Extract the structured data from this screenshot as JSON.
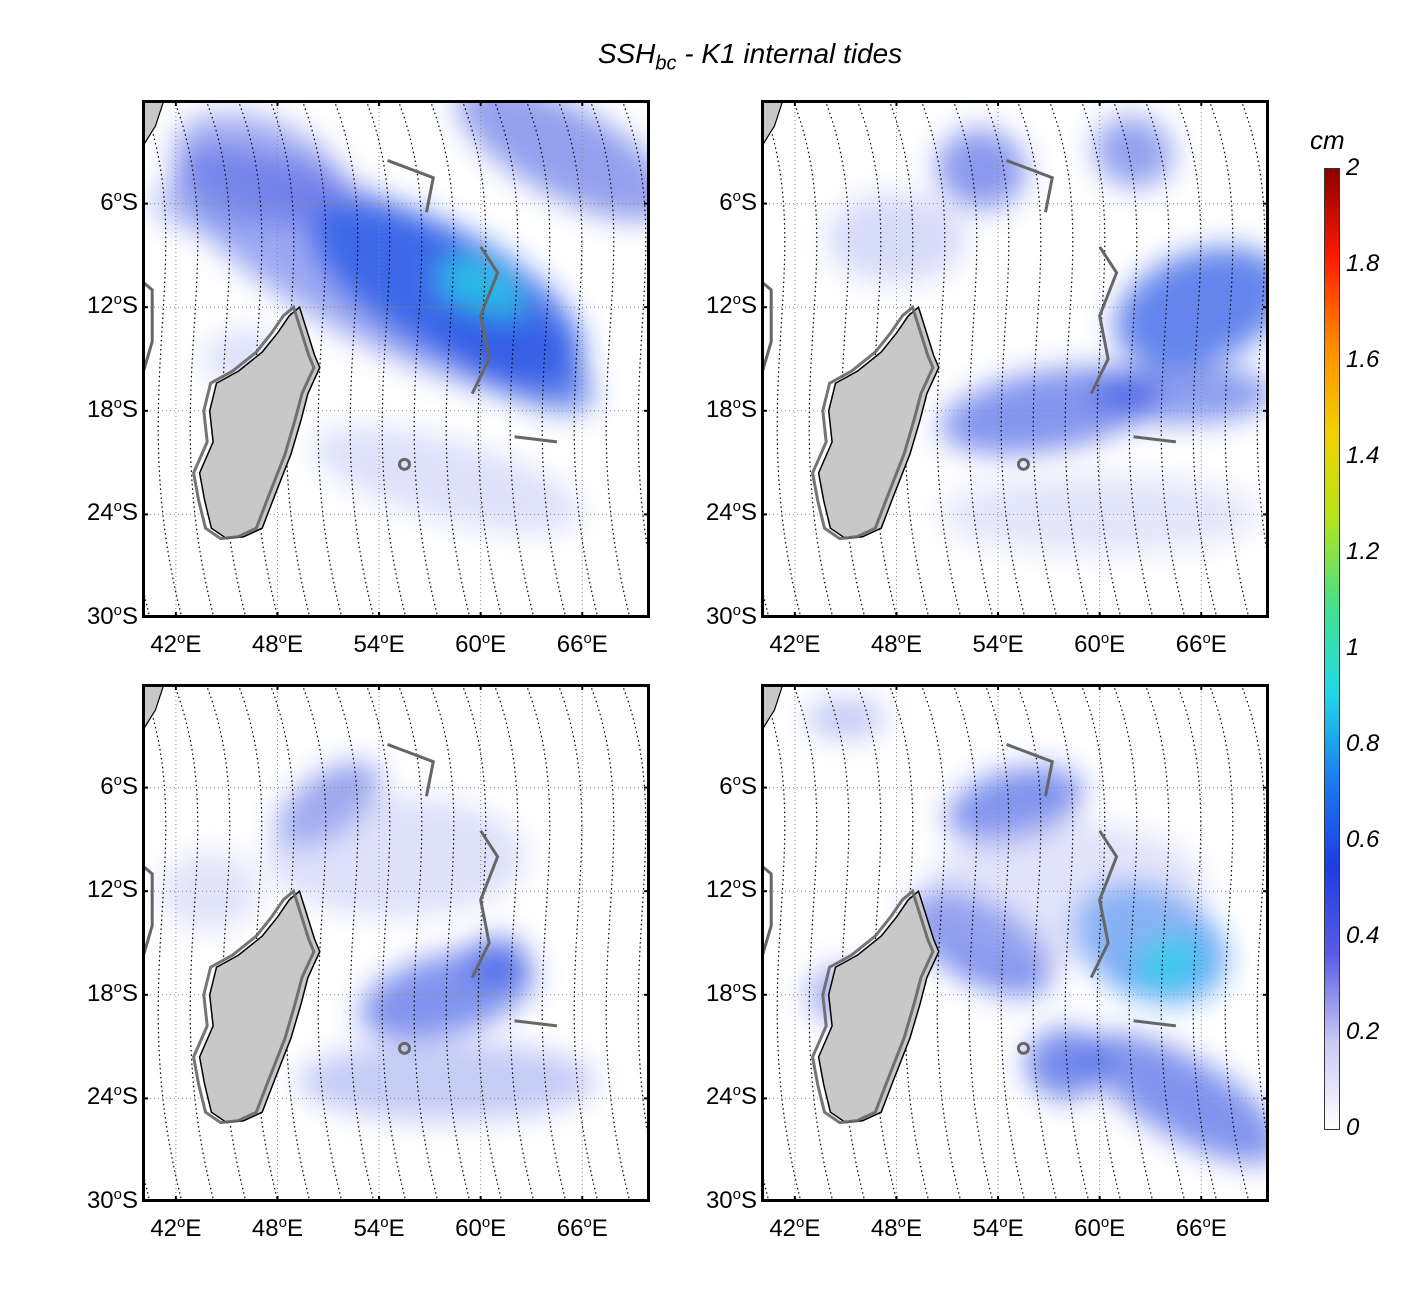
{
  "title": {
    "main": "SSH",
    "sub": "bc",
    "rest": " - K1 internal tides"
  },
  "colorbar": {
    "unit": "cm",
    "ticks": [
      "2",
      "1.8",
      "1.6",
      "1.4",
      "1.2",
      "1",
      "0.8",
      "0.6",
      "0.4",
      "0.2",
      "0"
    ],
    "range": [
      0,
      2
    ],
    "colors": [
      "#ffffff",
      "#c9c9f5",
      "#5b5be6",
      "#1f3de0",
      "#1a7cf0",
      "#22d8e8",
      "#46e08a",
      "#b4e41a",
      "#f3d000",
      "#ff8a00",
      "#ff1a00",
      "#8b0000"
    ]
  },
  "axes": {
    "lat_labels": [
      {
        "deg": "6",
        "hem": "S"
      },
      {
        "deg": "12",
        "hem": "S"
      },
      {
        "deg": "18",
        "hem": "S"
      },
      {
        "deg": "24",
        "hem": "S"
      },
      {
        "deg": "30",
        "hem": "S"
      }
    ],
    "lon_labels": [
      {
        "deg": "42",
        "hem": "E"
      },
      {
        "deg": "48",
        "hem": "E"
      },
      {
        "deg": "54",
        "hem": "E"
      },
      {
        "deg": "60",
        "hem": "E"
      },
      {
        "deg": "66",
        "hem": "E"
      }
    ],
    "lon_range": [
      40,
      70
    ],
    "lat_range": [
      0,
      -30
    ]
  },
  "colors": {
    "land": "#c8c8c8",
    "coast": "#666666",
    "frame": "#000000",
    "grid": "#888888"
  }
}
